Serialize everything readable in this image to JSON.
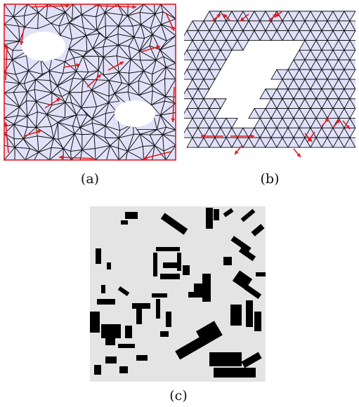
{
  "figure": {
    "panels": [
      {
        "id": "a",
        "caption": "(a)"
      },
      {
        "id": "b",
        "caption": "(b)"
      },
      {
        "id": "c",
        "caption": "(c)"
      }
    ],
    "colors": {
      "mesh_fill": "#e1e1fa",
      "mesh_edge": "#111111",
      "boundary_arrow": "#e8191d",
      "map_background": "#e4e4e4",
      "buildings": "#000000"
    }
  }
}
